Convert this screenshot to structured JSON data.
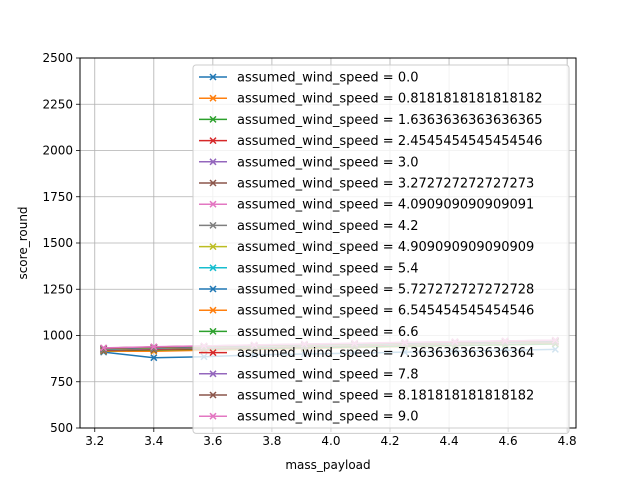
{
  "chart_data": {
    "type": "line",
    "title": "",
    "xlabel": "mass_payload",
    "ylabel": "score_round",
    "xlim": [
      3.15,
      4.83
    ],
    "ylim": [
      500,
      2500
    ],
    "xticks": [
      "3.2",
      "3.4",
      "3.6",
      "3.8",
      "4.0",
      "4.2",
      "4.4",
      "4.6",
      "4.8"
    ],
    "yticks": [
      "500",
      "750",
      "1000",
      "1250",
      "1500",
      "1750",
      "2000",
      "2250",
      "2500"
    ],
    "grid": true,
    "legend_position": "top-right",
    "marker": "x",
    "x": [
      3.23,
      3.4,
      3.57,
      3.74,
      3.91,
      4.08,
      4.25,
      4.42,
      4.59,
      4.76
    ],
    "series": [
      {
        "name": "assumed_wind_speed = 0.0",
        "color": "#1f77b4",
        "values": [
          910,
          880,
          885,
          895,
          900,
          905,
          910,
          915,
          920,
          925
        ]
      },
      {
        "name": "assumed_wind_speed = 0.8181818181818182",
        "color": "#ff7f0e",
        "values": [
          915,
          915,
          920,
          925,
          930,
          935,
          940,
          945,
          950,
          955
        ]
      },
      {
        "name": "assumed_wind_speed = 1.6363636363636365",
        "color": "#2ca02c",
        "values": [
          918,
          922,
          926,
          930,
          934,
          938,
          942,
          946,
          950,
          954
        ]
      },
      {
        "name": "assumed_wind_speed = 2.4545454545454546",
        "color": "#d62728",
        "values": [
          920,
          925,
          930,
          935,
          940,
          945,
          950,
          955,
          960,
          962
        ]
      },
      {
        "name": "assumed_wind_speed = 3.0",
        "color": "#9467bd",
        "values": [
          922,
          928,
          933,
          938,
          942,
          947,
          952,
          956,
          960,
          964
        ]
      },
      {
        "name": "assumed_wind_speed = 3.272727272727273",
        "color": "#8c564b",
        "values": [
          923,
          929,
          934,
          939,
          943,
          948,
          953,
          957,
          961,
          965
        ]
      },
      {
        "name": "assumed_wind_speed = 4.090909090909091",
        "color": "#e377c2",
        "values": [
          926,
          932,
          937,
          942,
          946,
          951,
          956,
          960,
          964,
          968
        ]
      },
      {
        "name": "assumed_wind_speed = 4.2",
        "color": "#7f7f7f",
        "values": [
          925,
          931,
          936,
          941,
          945,
          950,
          955,
          959,
          963,
          967
        ]
      },
      {
        "name": "assumed_wind_speed = 4.909090909090909",
        "color": "#bcbd22",
        "values": [
          927,
          933,
          938,
          943,
          948,
          952,
          957,
          961,
          965,
          969
        ]
      },
      {
        "name": "assumed_wind_speed = 5.4",
        "color": "#17becf",
        "values": [
          928,
          934,
          939,
          944,
          949,
          953,
          958,
          962,
          966,
          970
        ]
      },
      {
        "name": "assumed_wind_speed = 5.727272727272728",
        "color": "#1f77b4",
        "values": [
          929,
          935,
          940,
          945,
          950,
          954,
          959,
          963,
          967,
          971
        ]
      },
      {
        "name": "assumed_wind_speed = 6.545454545454546",
        "color": "#ff7f0e",
        "values": [
          930,
          936,
          941,
          946,
          951,
          955,
          960,
          964,
          968,
          972
        ]
      },
      {
        "name": "assumed_wind_speed = 6.6",
        "color": "#2ca02c",
        "values": [
          930,
          936,
          941,
          946,
          951,
          955,
          960,
          964,
          968,
          972
        ]
      },
      {
        "name": "assumed_wind_speed = 7.363636363636364",
        "color": "#d62728",
        "values": [
          931,
          937,
          942,
          947,
          952,
          956,
          961,
          965,
          969,
          973
        ]
      },
      {
        "name": "assumed_wind_speed = 7.8",
        "color": "#9467bd",
        "values": [
          932,
          938,
          943,
          948,
          953,
          957,
          962,
          966,
          970,
          974
        ]
      },
      {
        "name": "assumed_wind_speed = 8.181818181818182",
        "color": "#8c564b",
        "values": [
          932,
          938,
          943,
          948,
          953,
          957,
          962,
          966,
          970,
          974
        ]
      },
      {
        "name": "assumed_wind_speed = 9.0",
        "color": "#e377c2",
        "values": [
          933,
          939,
          944,
          949,
          954,
          958,
          963,
          967,
          971,
          975
        ]
      }
    ]
  }
}
